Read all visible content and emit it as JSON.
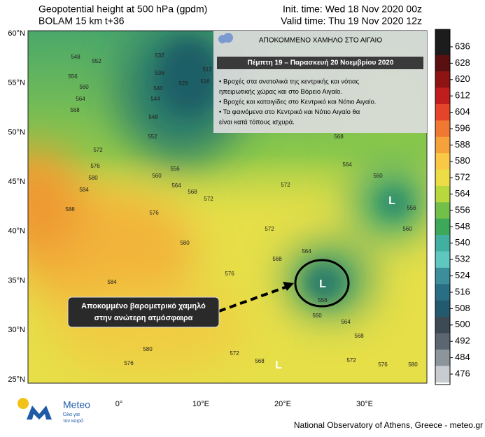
{
  "header": {
    "title": "Geopotential height at 500 hPa (gpdm)",
    "model": "BOLAM 15 km t+36",
    "init_time": "Init. time: Wed 18 Nov 2020 00z",
    "valid_time": "Valid time: Thu 19 Nov 2020 12z"
  },
  "map": {
    "lat_labels": [
      "60°N",
      "55°N",
      "50°N",
      "45°N",
      "40°N",
      "35°N",
      "30°N",
      "25°N"
    ],
    "lon_labels": [
      "0°",
      "10°E",
      "20°E",
      "30°E"
    ],
    "contour_labels": [
      "548",
      "552",
      "532",
      "536",
      "556",
      "560",
      "540",
      "528",
      "512",
      "516",
      "564",
      "544",
      "568",
      "548",
      "552",
      "572",
      "576",
      "580",
      "584",
      "556",
      "560",
      "564",
      "568",
      "572",
      "576",
      "588",
      "580",
      "584",
      "576",
      "572",
      "568",
      "564",
      "572",
      "568",
      "564",
      "560",
      "556",
      "560",
      "556",
      "560",
      "564",
      "568",
      "572",
      "576",
      "580",
      "580",
      "576",
      "572",
      "568"
    ],
    "lows": [
      "L",
      "L",
      "L"
    ]
  },
  "info_box": {
    "title": "ΑΠΟΚΟΜΜΕΝΟ ΧΑΜΗΛΟ ΣΤΟ ΑΙΓΑΙΟ",
    "date": "Πέμπτη 19 – Παρασκευή 20 Νοεμβρίου 2020",
    "bullets": [
      "• Βροχές στα ανατολικά της κεντρικής και νότιας",
      "ηπειρωτικής χώρας και στο Βόρειο Αιγαίο.",
      "• Βροχές και καταιγίδες στο Κεντρικό και Νότιο Αιγαίο.",
      "• Τα φαινόμενα στο Κεντρικό και Νότιο Αιγαίο θα",
      "είναι κατά τόπους ισχυρά."
    ]
  },
  "annotation": {
    "lines": [
      "Αποκομμένο βαρομετρικό χαμηλό",
      "στην ανώτερη ατμόσφαιρα"
    ]
  },
  "colorbar": {
    "ticks": [
      636,
      628,
      620,
      612,
      604,
      596,
      588,
      580,
      572,
      564,
      556,
      548,
      540,
      532,
      524,
      516,
      508,
      500,
      492,
      484,
      476
    ],
    "colors": [
      "#1c1c1c",
      "#5a1010",
      "#8e1414",
      "#c01e1e",
      "#e4452a",
      "#f07832",
      "#f5a23a",
      "#f8c846",
      "#ecdd46",
      "#b8d83e",
      "#72c04a",
      "#3ea85a",
      "#42b0a0",
      "#5ec8c0",
      "#3c8e9a",
      "#2a6e86",
      "#245a6e",
      "#3c4a56",
      "#5c6670",
      "#8c949c",
      "#c8ccd0"
    ]
  },
  "footer": {
    "brand": "Meteo",
    "slogan": [
      "Όλα για",
      "τον καιρό"
    ],
    "credit": "National Observatory of Athens, Greece - meteo.gr"
  }
}
